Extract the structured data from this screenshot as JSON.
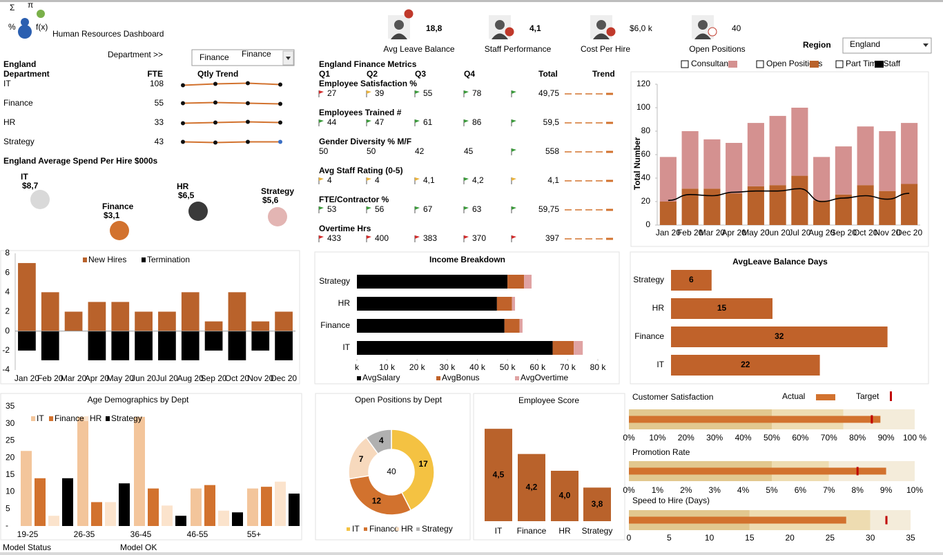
{
  "header": {
    "title": "Human Resources Dashboard",
    "logo_symbols": [
      "Σ",
      "π",
      "%",
      "f(x)"
    ]
  },
  "kpis": [
    {
      "value": "18,8",
      "label": "Avg Leave Balance"
    },
    {
      "value": "4,1",
      "label": "Staff Performance"
    },
    {
      "value": "$6,0 k",
      "label": "Cost Per Hire"
    },
    {
      "value": "40",
      "label": "Open Positions"
    }
  ],
  "region_filter": {
    "label": "Region",
    "value": "England"
  },
  "department_filter": {
    "label": "Department >>",
    "value": "Finance",
    "overlay": "Finance"
  },
  "fte_table": {
    "region": "England",
    "columns": [
      "Department",
      "FTE",
      "Qtly Trend"
    ],
    "rows": [
      [
        "IT",
        108
      ],
      [
        "Finance",
        55
      ],
      [
        "HR",
        33
      ],
      [
        "Strategy",
        43
      ]
    ]
  },
  "metrics_table": {
    "title": "England Finance Metrics",
    "columns": [
      "Q1",
      "Q2",
      "Q3",
      "Q4",
      "Total",
      "Trend"
    ],
    "rows": [
      {
        "name": "Employee Satisfaction %",
        "values": [
          "27",
          "39",
          "55",
          "78"
        ],
        "total": "49,75",
        "flags": [
          "#d12b2b",
          "#e9b23c",
          "#3a9a3a",
          "#3a9a3a",
          "#3a9a3a"
        ]
      },
      {
        "name": "Employees Trained #",
        "values": [
          "44",
          "47",
          "61",
          "86"
        ],
        "total": "59,5",
        "flags": [
          "#3a9a3a",
          "#3a9a3a",
          "#3a9a3a",
          "#3a9a3a",
          "#3a9a3a"
        ]
      },
      {
        "name": "Gender Diversity % M/F",
        "values": [
          "50",
          "50",
          "42",
          "45"
        ],
        "total": "558",
        "flags": [
          null,
          null,
          null,
          null,
          "#3a9a3a"
        ]
      },
      {
        "name": "Avg Staff Rating (0-5)",
        "values": [
          "4",
          "4",
          "4,1",
          "4,2"
        ],
        "total": "4,1",
        "flags": [
          "#e9b23c",
          "#e9b23c",
          "#e9b23c",
          "#3a9a3a",
          "#e9b23c"
        ]
      },
      {
        "name": "FTE/Contractor %",
        "values": [
          "53",
          "56",
          "67",
          "63"
        ],
        "total": "59,75",
        "flags": [
          "#3a9a3a",
          "#3a9a3a",
          "#3a9a3a",
          "#3a9a3a",
          "#3a9a3a"
        ]
      },
      {
        "name": "Overtime Hrs",
        "values": [
          "433",
          "400",
          "383",
          "370"
        ],
        "total": "397",
        "flags": [
          "#d12b2b",
          "#d12b2b",
          "#d12b2b",
          "#d12b2b",
          "#d12b2b"
        ]
      }
    ]
  },
  "footer": {
    "status_label": "Model Status",
    "status": "Model OK"
  },
  "chart_data": [
    {
      "type": "bubble",
      "title": "England Average Spend Per Hire $000s",
      "categories": [
        "IT",
        "Finance",
        "HR",
        "Strategy"
      ],
      "values": [
        8.7,
        3.1,
        6.5,
        5.6
      ],
      "value_labels": [
        "$8,7",
        "$3,1",
        "$6,5",
        "$5,6"
      ],
      "colors": [
        "#d9d9d9",
        "#d2722e",
        "#3a3a3a",
        "#e3b5b3"
      ]
    },
    {
      "type": "combo",
      "y_label": "Total Number",
      "categories": [
        "Jan 20",
        "Feb 20",
        "Mar 20",
        "Apr 20",
        "May 20",
        "Jun 20",
        "Jul 20",
        "Aug 20",
        "Sep 20",
        "Oct 20",
        "Nov 20",
        "Dec 20"
      ],
      "ylim": [
        0,
        120
      ],
      "yticks": [
        0,
        20,
        40,
        60,
        80,
        100,
        120
      ],
      "series": [
        {
          "name": "Consultants",
          "kind": "bar",
          "color": "#d49190",
          "values": [
            38,
            49,
            42,
            43,
            54,
            59,
            58,
            37,
            41,
            50,
            51,
            52
          ]
        },
        {
          "name": "Open Positions",
          "kind": "bar",
          "color": "#b9622b",
          "values": [
            20,
            31,
            31,
            27,
            33,
            34,
            42,
            21,
            26,
            34,
            29,
            35
          ]
        },
        {
          "name": "Part Time Staff",
          "kind": "line",
          "color": "#000000",
          "values": [
            21,
            26,
            25,
            28,
            29,
            29,
            31,
            20,
            23,
            25,
            22,
            27
          ]
        }
      ]
    },
    {
      "type": "diverging_bar",
      "categories": [
        "Jan 20",
        "Feb 20",
        "Mar 20",
        "Apr 20",
        "May 20",
        "Jun 20",
        "Jul 20",
        "Aug 20",
        "Sep 20",
        "Oct 20",
        "Nov 20",
        "Dec 20"
      ],
      "ylim": [
        -4,
        8
      ],
      "yticks": [
        -4,
        -2,
        0,
        2,
        4,
        6,
        8
      ],
      "series": [
        {
          "name": "New Hires",
          "color": "#b9622b",
          "values": [
            7,
            4,
            2,
            3,
            3,
            2,
            2,
            4,
            1,
            4,
            1,
            2
          ]
        },
        {
          "name": "Termination",
          "color": "#000000",
          "values": [
            -2,
            -3,
            0,
            -3,
            -3,
            -3,
            -3,
            -3,
            -2,
            -3,
            -2,
            -3
          ]
        }
      ]
    },
    {
      "type": "stacked_hbar",
      "title": "Income Breakdown",
      "categories": [
        "Strategy",
        "HR",
        "Finance",
        "IT"
      ],
      "xlim": [
        0,
        80000
      ],
      "xticks": [
        {
          "value": 0,
          "label": "k"
        },
        {
          "value": 10000,
          "label": "10 k"
        },
        {
          "value": 20000,
          "label": "20 k"
        },
        {
          "value": 30000,
          "label": "30 k"
        },
        {
          "value": 40000,
          "label": "40 k"
        },
        {
          "value": 50000,
          "label": "50 k"
        },
        {
          "value": 60000,
          "label": "60 k"
        },
        {
          "value": 70000,
          "label": "70 k"
        },
        {
          "value": 80000,
          "label": "80 k"
        }
      ],
      "series": [
        {
          "name": "AvgSalary",
          "color": "#000000",
          "values": [
            50000,
            46500,
            49000,
            65000
          ]
        },
        {
          "name": "AvgBonus",
          "color": "#c0622a",
          "values": [
            5500,
            5000,
            5000,
            7000
          ]
        },
        {
          "name": "AvgOvertime",
          "color": "#e0a3a3",
          "values": [
            2500,
            1000,
            1000,
            3000
          ]
        }
      ]
    },
    {
      "type": "hbar",
      "title": "AvgLeave Balance Days",
      "categories": [
        "Strategy",
        "HR",
        "Finance",
        "IT"
      ],
      "values": [
        6,
        15,
        32,
        22
      ],
      "color": "#c0622a"
    },
    {
      "type": "grouped_bar",
      "title": "Age Demographics by Dept",
      "categories": [
        "19-25",
        "26-35",
        "36-45",
        "46-55",
        "55+"
      ],
      "ylim": [
        0,
        35
      ],
      "yticks": [
        {
          "value": 0,
          "label": "-"
        },
        5,
        10,
        15,
        20,
        25,
        30,
        35
      ],
      "series": [
        {
          "name": "IT",
          "color": "#f3c59b",
          "values": [
            22,
            32,
            32,
            11,
            11
          ]
        },
        {
          "name": "Finance",
          "color": "#d2722e",
          "values": [
            14,
            7,
            11,
            12,
            11.5
          ]
        },
        {
          "name": "HR",
          "color": "#fbe3cc",
          "values": [
            3,
            7,
            6,
            4.5,
            13
          ]
        },
        {
          "name": "Strategy",
          "color": "#000000",
          "values": [
            14,
            12.5,
            3,
            4,
            9.5
          ]
        }
      ]
    },
    {
      "type": "donut",
      "title": "Open Positions by Dept",
      "categories": [
        "IT",
        "Finance",
        "HR",
        "Strategy"
      ],
      "values": [
        17,
        12,
        7,
        4
      ],
      "colors": [
        "#f4c242",
        "#d2722e",
        "#f7d9bd",
        "#b0b0b0"
      ],
      "center_label": "40"
    },
    {
      "type": "column",
      "title": "Employee Score",
      "categories": [
        "IT",
        "Finance",
        "HR",
        "Strategy"
      ],
      "values": [
        4.5,
        4.2,
        4.0,
        3.8
      ],
      "value_labels": [
        "4,5",
        "4,2",
        "4,0",
        "3,8"
      ],
      "color": "#b9622b",
      "ylim": [
        3.4,
        4.6
      ]
    },
    {
      "type": "bullet",
      "title": "Customer Satisfaction",
      "legend": {
        "actual": "Actual",
        "target": "Target"
      },
      "bands": [
        50,
        75,
        100
      ],
      "band_colors": [
        "#e2c88f",
        "#eedcb1",
        "#f4ecda"
      ],
      "actual": 88,
      "target": 85,
      "actual_color": "#d2722e",
      "target_color": "#c00000",
      "xlim": [
        0,
        100
      ],
      "xticks": [
        {
          "value": 0,
          "label": "0%"
        },
        {
          "value": 10,
          "label": "10%"
        },
        {
          "value": 20,
          "label": "20%"
        },
        {
          "value": 30,
          "label": "30%"
        },
        {
          "value": 40,
          "label": "40%"
        },
        {
          "value": 50,
          "label": "50%"
        },
        {
          "value": 60,
          "label": "60%"
        },
        {
          "value": 70,
          "label": "70%"
        },
        {
          "value": 80,
          "label": "80%"
        },
        {
          "value": 90,
          "label": "90%"
        },
        {
          "value": 100,
          "label": "100 %"
        }
      ]
    },
    {
      "type": "bullet",
      "title": "Promotion Rate",
      "bands": [
        5,
        7,
        10
      ],
      "band_colors": [
        "#e2c88f",
        "#eedcb1",
        "#f4ecda"
      ],
      "actual": 9,
      "target": 8,
      "actual_color": "#d2722e",
      "target_color": "#c00000",
      "xlim": [
        0,
        10
      ],
      "xticks": [
        {
          "value": 0,
          "label": "0%"
        },
        {
          "value": 1,
          "label": "1%"
        },
        {
          "value": 2,
          "label": "2%"
        },
        {
          "value": 3,
          "label": "3%"
        },
        {
          "value": 4,
          "label": "4%"
        },
        {
          "value": 5,
          "label": "5%"
        },
        {
          "value": 6,
          "label": "6%"
        },
        {
          "value": 7,
          "label": "7%"
        },
        {
          "value": 8,
          "label": "8%"
        },
        {
          "value": 9,
          "label": "9%"
        },
        {
          "value": 10,
          "label": "10%"
        }
      ]
    },
    {
      "type": "bullet",
      "title": "Speed to Hire (Days)",
      "bands": [
        15,
        30,
        35
      ],
      "band_colors": [
        "#e2c88f",
        "#eedcb1",
        "#f4ecda"
      ],
      "actual": 27,
      "target": 32,
      "actual_color": "#d2722e",
      "target_color": "#c00000",
      "xlim": [
        0,
        35
      ],
      "xticks": [
        0,
        5,
        10,
        15,
        20,
        25,
        30,
        35
      ]
    }
  ]
}
